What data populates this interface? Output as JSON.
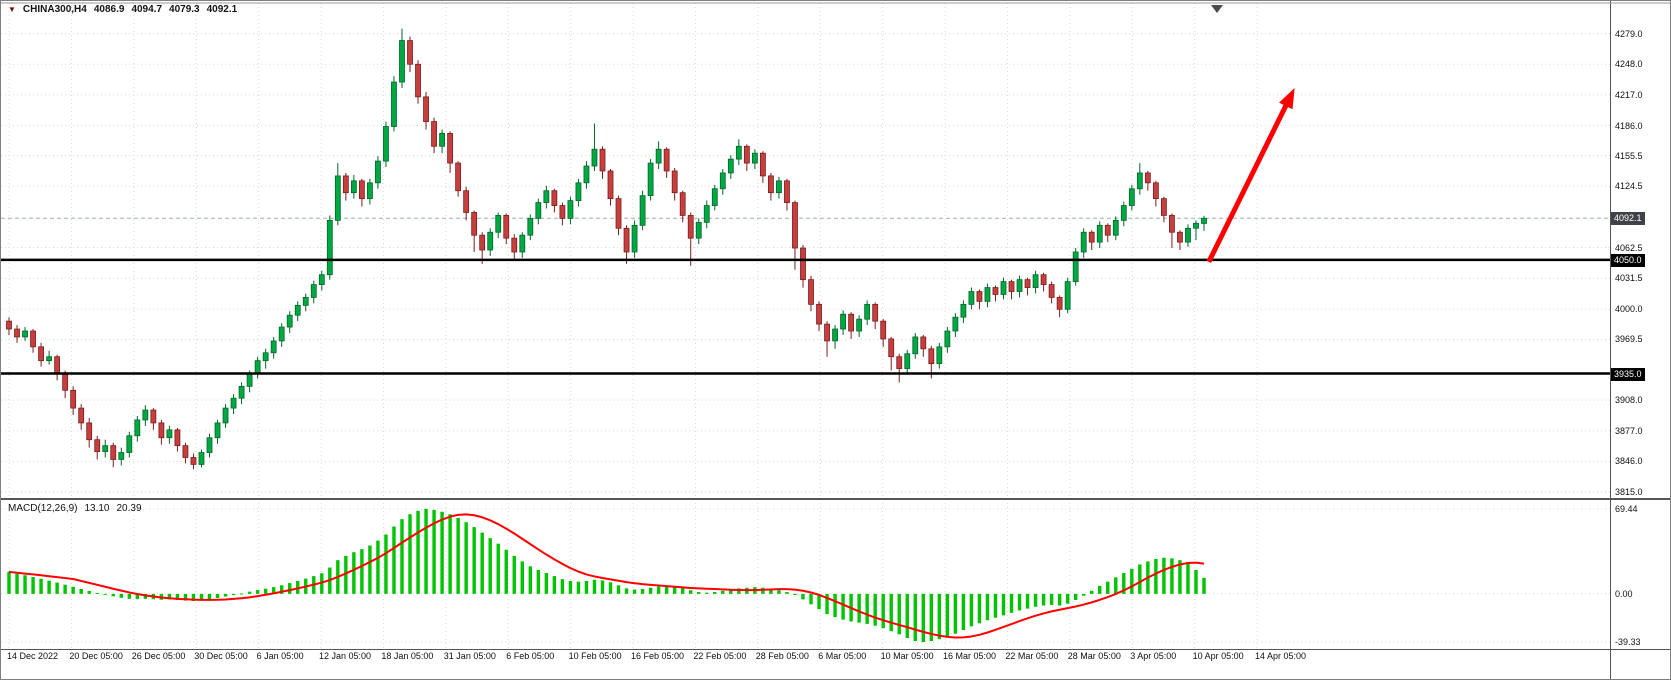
{
  "symbol_info": {
    "dropdown_icon": "▼",
    "symbol": "CHINA300,H4",
    "open": "4086.9",
    "high": "4094.7",
    "low": "4079.3",
    "close": "4092.1"
  },
  "macd_panel": {
    "name": "MACD(12,26,9)",
    "main_value": "13.10",
    "signal_value": "20.39"
  },
  "chart_data": {
    "type": "candlestick",
    "title": "CHINA300,H4",
    "timeframe": "H4",
    "ylim": [
      3809,
      4310
    ],
    "macd_ylim": [
      -45,
      75
    ],
    "y_tick_labels": [
      "4279.0",
      "4248.0",
      "4217.0",
      "4186.0",
      "4155.5",
      "4124.5",
      "4062.5",
      "4031.5",
      "4000.0",
      "3969.5",
      "3908.0",
      "3877.0",
      "3846.0",
      "3815.0"
    ],
    "macd_tick_labels": [
      "69.44",
      "0.00",
      "-39.33"
    ],
    "x_tick_labels": [
      "14 Dec 2022",
      "20 Dec 05:00",
      "26 Dec 05:00",
      "30 Dec 05:00",
      "6 Jan 05:00",
      "12 Jan 05:00",
      "18 Jan 05:00",
      "31 Jan 05:00",
      "6 Feb 05:00",
      "10 Feb 05:00",
      "16 Feb 05:00",
      "22 Feb 05:00",
      "28 Feb 05:00",
      "6 Mar 05:00",
      "10 Mar 05:00",
      "16 Mar 05:00",
      "22 Mar 05:00",
      "28 Mar 05:00",
      "3 Apr 05:00",
      "10 Apr 05:00",
      "14 Apr 05:00"
    ],
    "levels": [
      {
        "label": "4050.0",
        "value": 4050.0
      },
      {
        "label": "3935.0",
        "value": 3935.0
      }
    ],
    "current_price": {
      "label": "4092.1",
      "value": 4092.1
    },
    "ohlc": [
      [
        3988,
        3992,
        3974,
        3980
      ],
      [
        3980,
        3984,
        3966,
        3972
      ],
      [
        3972,
        3982,
        3968,
        3978
      ],
      [
        3978,
        3980,
        3956,
        3962
      ],
      [
        3962,
        3966,
        3942,
        3948
      ],
      [
        3948,
        3958,
        3944,
        3952
      ],
      [
        3952,
        3954,
        3928,
        3935
      ],
      [
        3935,
        3938,
        3910,
        3918
      ],
      [
        3918,
        3922,
        3893,
        3900
      ],
      [
        3900,
        3904,
        3878,
        3885
      ],
      [
        3885,
        3890,
        3860,
        3868
      ],
      [
        3868,
        3872,
        3848,
        3856
      ],
      [
        3856,
        3868,
        3850,
        3862
      ],
      [
        3862,
        3865,
        3840,
        3848
      ],
      [
        3848,
        3860,
        3842,
        3855
      ],
      [
        3855,
        3876,
        3850,
        3872
      ],
      [
        3872,
        3892,
        3866,
        3888
      ],
      [
        3888,
        3903,
        3882,
        3898
      ],
      [
        3898,
        3900,
        3878,
        3885
      ],
      [
        3885,
        3888,
        3863,
        3870
      ],
      [
        3870,
        3882,
        3864,
        3878
      ],
      [
        3878,
        3880,
        3856,
        3862
      ],
      [
        3862,
        3865,
        3844,
        3850
      ],
      [
        3850,
        3854,
        3838,
        3843
      ],
      [
        3843,
        3858,
        3840,
        3855
      ],
      [
        3855,
        3874,
        3850,
        3870
      ],
      [
        3870,
        3888,
        3864,
        3885
      ],
      [
        3885,
        3904,
        3880,
        3900
      ],
      [
        3900,
        3914,
        3894,
        3910
      ],
      [
        3910,
        3926,
        3904,
        3922
      ],
      [
        3922,
        3938,
        3916,
        3935
      ],
      [
        3935,
        3952,
        3930,
        3948
      ],
      [
        3948,
        3960,
        3940,
        3956
      ],
      [
        3956,
        3972,
        3950,
        3968
      ],
      [
        3968,
        3986,
        3962,
        3982
      ],
      [
        3982,
        3998,
        3976,
        3994
      ],
      [
        3994,
        4008,
        3988,
        4004
      ],
      [
        4004,
        4016,
        3998,
        4012
      ],
      [
        4012,
        4029,
        4006,
        4025
      ],
      [
        4025,
        4039,
        4019,
        4035
      ],
      [
        4035,
        4095,
        4030,
        4090
      ],
      [
        4090,
        4148,
        4085,
        4135
      ],
      [
        4135,
        4138,
        4110,
        4118
      ],
      [
        4118,
        4136,
        4112,
        4130
      ],
      [
        4130,
        4132,
        4104,
        4112
      ],
      [
        4112,
        4132,
        4106,
        4128
      ],
      [
        4128,
        4155,
        4122,
        4150
      ],
      [
        4150,
        4190,
        4144,
        4185
      ],
      [
        4185,
        4236,
        4180,
        4230
      ],
      [
        4230,
        4284,
        4224,
        4272
      ],
      [
        4272,
        4276,
        4240,
        4248
      ],
      [
        4248,
        4252,
        4208,
        4215
      ],
      [
        4215,
        4220,
        4182,
        4190
      ],
      [
        4190,
        4194,
        4158,
        4165
      ],
      [
        4165,
        4182,
        4158,
        4178
      ],
      [
        4178,
        4180,
        4138,
        4148
      ],
      [
        4148,
        4150,
        4114,
        4120
      ],
      [
        4120,
        4124,
        4090,
        4098
      ],
      [
        4098,
        4100,
        4058,
        4075
      ],
      [
        4075,
        4078,
        4046,
        4060
      ],
      [
        4060,
        4082,
        4054,
        4078
      ],
      [
        4078,
        4098,
        4072,
        4095
      ],
      [
        4095,
        4097,
        4066,
        4072
      ],
      [
        4072,
        4076,
        4050,
        4058
      ],
      [
        4058,
        4078,
        4052,
        4075
      ],
      [
        4075,
        4096,
        4070,
        4092
      ],
      [
        4092,
        4112,
        4086,
        4108
      ],
      [
        4108,
        4125,
        4102,
        4120
      ],
      [
        4120,
        4122,
        4098,
        4105
      ],
      [
        4105,
        4108,
        4085,
        4092
      ],
      [
        4092,
        4114,
        4086,
        4110
      ],
      [
        4110,
        4132,
        4104,
        4128
      ],
      [
        4128,
        4150,
        4122,
        4145
      ],
      [
        4145,
        4188,
        4140,
        4162
      ],
      [
        4162,
        4165,
        4132,
        4140
      ],
      [
        4140,
        4142,
        4105,
        4112
      ],
      [
        4112,
        4115,
        4075,
        4082
      ],
      [
        4082,
        4085,
        4046,
        4058
      ],
      [
        4058,
        4090,
        4052,
        4085
      ],
      [
        4085,
        4120,
        4080,
        4115
      ],
      [
        4115,
        4152,
        4110,
        4148
      ],
      [
        4148,
        4170,
        4142,
        4162
      ],
      [
        4162,
        4164,
        4133,
        4140
      ],
      [
        4140,
        4143,
        4110,
        4118
      ],
      [
        4118,
        4120,
        4088,
        4095
      ],
      [
        4095,
        4098,
        4044,
        4072
      ],
      [
        4072,
        4092,
        4066,
        4088
      ],
      [
        4088,
        4110,
        4082,
        4105
      ],
      [
        4105,
        4126,
        4100,
        4122
      ],
      [
        4122,
        4142,
        4116,
        4138
      ],
      [
        4138,
        4156,
        4132,
        4152
      ],
      [
        4152,
        4172,
        4146,
        4165
      ],
      [
        4165,
        4167,
        4140,
        4148
      ],
      [
        4148,
        4162,
        4142,
        4158
      ],
      [
        4158,
        4160,
        4128,
        4135
      ],
      [
        4135,
        4138,
        4110,
        4118
      ],
      [
        4118,
        4134,
        4112,
        4130
      ],
      [
        4130,
        4132,
        4100,
        4108
      ],
      [
        4108,
        4110,
        4040,
        4062
      ],
      [
        4062,
        4065,
        4022,
        4030
      ],
      [
        4030,
        4034,
        3998,
        4005
      ],
      [
        4005,
        4008,
        3978,
        3985
      ],
      [
        3985,
        3988,
        3952,
        3968
      ],
      [
        3968,
        3984,
        3960,
        3980
      ],
      [
        3980,
        3999,
        3974,
        3995
      ],
      [
        3995,
        3997,
        3970,
        3978
      ],
      [
        3978,
        3994,
        3972,
        3990
      ],
      [
        3990,
        4009,
        3984,
        4005
      ],
      [
        4005,
        4007,
        3980,
        3988
      ],
      [
        3988,
        3990,
        3962,
        3970
      ],
      [
        3970,
        3972,
        3938,
        3952
      ],
      [
        3952,
        3955,
        3926,
        3940
      ],
      [
        3940,
        3959,
        3935,
        3955
      ],
      [
        3955,
        3976,
        3950,
        3972
      ],
      [
        3972,
        3974,
        3952,
        3960
      ],
      [
        3960,
        3963,
        3930,
        3945
      ],
      [
        3945,
        3966,
        3940,
        3962
      ],
      [
        3962,
        3982,
        3956,
        3978
      ],
      [
        3978,
        3996,
        3972,
        3992
      ],
      [
        3992,
        4009,
        3986,
        4005
      ],
      [
        4005,
        4022,
        4000,
        4018
      ],
      [
        4018,
        4020,
        4000,
        4008
      ],
      [
        4008,
        4026,
        4002,
        4022
      ],
      [
        4022,
        4024,
        4008,
        4015
      ],
      [
        4015,
        4032,
        4010,
        4028
      ],
      [
        4028,
        4030,
        4010,
        4018
      ],
      [
        4018,
        4034,
        4012,
        4030
      ],
      [
        4030,
        4032,
        4014,
        4022
      ],
      [
        4022,
        4039,
        4016,
        4035
      ],
      [
        4035,
        4037,
        4018,
        4025
      ],
      [
        4025,
        4028,
        4006,
        4012
      ],
      [
        4012,
        4014,
        3992,
        4000
      ],
      [
        4000,
        4032,
        3996,
        4028
      ],
      [
        4028,
        4062,
        4024,
        4058
      ],
      [
        4058,
        4082,
        4052,
        4078
      ],
      [
        4078,
        4080,
        4060,
        4068
      ],
      [
        4068,
        4089,
        4062,
        4085
      ],
      [
        4085,
        4087,
        4068,
        4075
      ],
      [
        4075,
        4094,
        4070,
        4090
      ],
      [
        4090,
        4109,
        4084,
        4105
      ],
      [
        4105,
        4126,
        4100,
        4122
      ],
      [
        4122,
        4148,
        4116,
        4138
      ],
      [
        4138,
        4140,
        4120,
        4128
      ],
      [
        4128,
        4130,
        4104,
        4112
      ],
      [
        4112,
        4114,
        4088,
        4095
      ],
      [
        4095,
        4097,
        4062,
        4078
      ],
      [
        4078,
        4080,
        4060,
        4068
      ],
      [
        4068,
        4086,
        4063,
        4082
      ],
      [
        4082,
        4090,
        4070,
        4087
      ],
      [
        4086.9,
        4094.7,
        4079.3,
        4092.1
      ]
    ],
    "macd_histogram": [
      18,
      16.5,
      15.2,
      13.8,
      12.3,
      10.8,
      9.2,
      7.5,
      5.8,
      4,
      2.4,
      0.8,
      -0.6,
      -2,
      -3.2,
      -4,
      -4.3,
      -4.1,
      -4.4,
      -4.8,
      -4.6,
      -5,
      -5.5,
      -5.8,
      -5.2,
      -4.4,
      -3.4,
      -2.2,
      -1,
      0.3,
      1.8,
      3.2,
      4.2,
      5.5,
      7,
      8.8,
      10.5,
      12.4,
      14.5,
      16.8,
      21.5,
      27.5,
      31,
      34,
      36.5,
      39.5,
      43.5,
      48.5,
      55,
      61,
      65,
      67.8,
      69.4,
      68.6,
      67,
      65,
      62,
      58.5,
      54.5,
      50,
      45.5,
      41,
      36,
      31,
      26.5,
      22.5,
      19.5,
      17,
      14.5,
      12,
      10.5,
      10,
      10.5,
      11.5,
      11,
      9.5,
      7,
      4.5,
      3.5,
      4,
      5,
      6,
      6.5,
      6,
      5,
      3,
      1.5,
      1,
      1.5,
      2.5,
      3.5,
      4.5,
      5,
      5.5,
      5,
      4,
      3,
      1.5,
      -1,
      -4.5,
      -8.5,
      -12.5,
      -16.5,
      -19,
      -21,
      -22.5,
      -23.5,
      -24.5,
      -26,
      -28,
      -30.5,
      -33,
      -36,
      -38.5,
      -39.3,
      -38.5,
      -37,
      -35,
      -32.5,
      -29.5,
      -26.5,
      -24,
      -21.5,
      -19.5,
      -17.5,
      -15.5,
      -13.5,
      -12,
      -10.5,
      -9.5,
      -9,
      -9.5,
      -8,
      -5,
      -1.5,
      2.5,
      6.5,
      10,
      13.5,
      17,
      20.5,
      24,
      26.5,
      28.5,
      29.5,
      29,
      27.5,
      24.5,
      19.5,
      13.1
    ],
    "macd_signal_period": 9,
    "annotations": [
      {
        "type": "arrow",
        "name": "bullish-trend-arrow",
        "color": "#ff0000",
        "from": {
          "bar": 149.6,
          "price": 4048
        },
        "to": {
          "bar": 160.3,
          "price": 4224
        }
      }
    ],
    "colors": {
      "grid": "#d8d8d8",
      "up": "#00a843",
      "up_border": "#00672a",
      "down": "#c63f3f",
      "down_border": "#7c1d1d",
      "macd_histogram": "#00c400",
      "macd_signal": "#ff0000",
      "level_line": "#000000",
      "current_price_line": "#9fb0bd",
      "badge_current": "#3f4347",
      "badge_level": "#000000",
      "arrow": "#ff0000"
    }
  }
}
